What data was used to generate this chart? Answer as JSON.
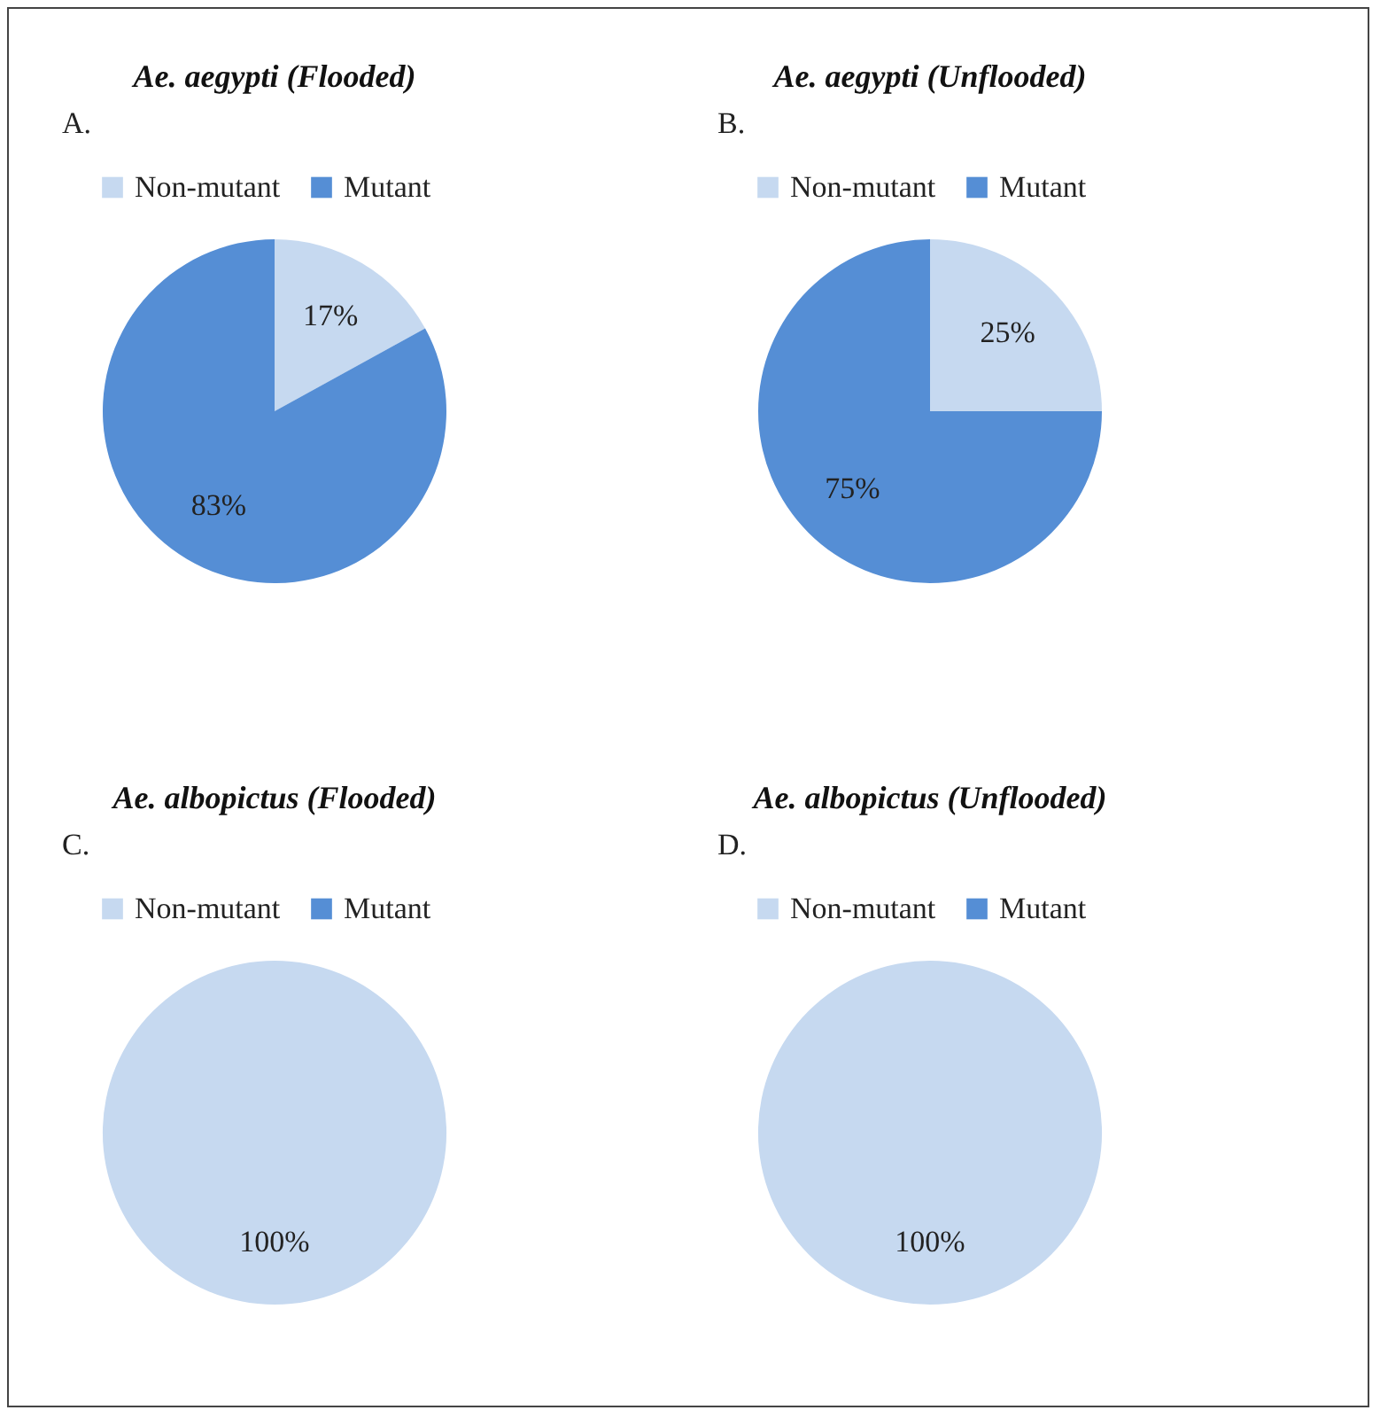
{
  "chart_data": [
    {
      "type": "pie",
      "title": "Ae. aegypti (Flooded)",
      "annotations": [
        "A."
      ],
      "categories": [
        "Non-mutant",
        "Mutant"
      ],
      "values": [
        17,
        83
      ],
      "colors": [
        "#c6d9f0",
        "#558ed5"
      ],
      "value_labels": [
        "17%",
        "83%"
      ],
      "legend": "top"
    },
    {
      "type": "pie",
      "title": "Ae. aegypti (Unflooded)",
      "annotations": [
        "B."
      ],
      "categories": [
        "Non-mutant",
        "Mutant"
      ],
      "values": [
        25,
        75
      ],
      "colors": [
        "#c6d9f0",
        "#558ed5"
      ],
      "value_labels": [
        "25%",
        "75%"
      ],
      "legend": "top"
    },
    {
      "type": "pie",
      "title": "Ae. albopictus (Flooded)",
      "annotations": [
        "C."
      ],
      "categories": [
        "Non-mutant",
        "Mutant"
      ],
      "values": [
        100,
        0
      ],
      "colors": [
        "#c6d9f0",
        "#558ed5"
      ],
      "value_labels": [
        "100%",
        null
      ],
      "legend": "top"
    },
    {
      "type": "pie",
      "title": "Ae. albopictus (Unflooded)",
      "annotations": [
        "D."
      ],
      "categories": [
        "Non-mutant",
        "Mutant"
      ],
      "values": [
        100,
        0
      ],
      "colors": [
        "#c6d9f0",
        "#558ed5"
      ],
      "value_labels": [
        "100%",
        null
      ],
      "legend": "top"
    }
  ]
}
